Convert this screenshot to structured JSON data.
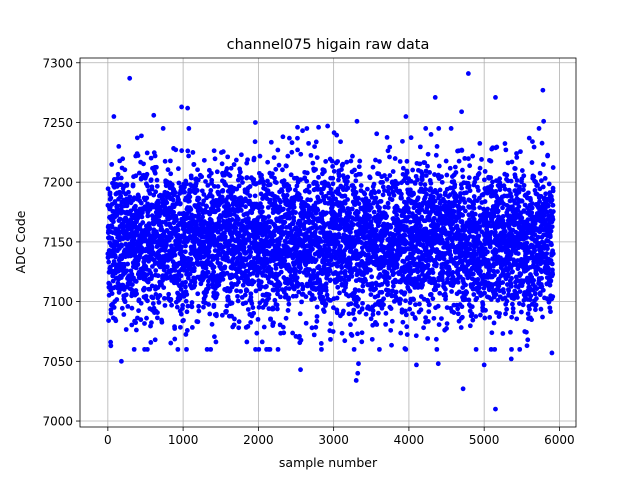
{
  "chart_data": {
    "type": "scatter",
    "title": "channel075 higain raw data",
    "xlabel": "sample number",
    "ylabel": "ADC Code",
    "xlim": [
      -370,
      6220
    ],
    "ylim": [
      6995,
      7304
    ],
    "xticks": [
      0,
      1000,
      2000,
      3000,
      4000,
      5000,
      6000
    ],
    "yticks": [
      7000,
      7050,
      7100,
      7150,
      7200,
      7250,
      7300
    ],
    "grid": true,
    "legend": "none",
    "marker_color": "#0000ff",
    "n_points": 5920,
    "center": 7150,
    "spread_sd": 32,
    "outliers": [
      {
        "x": 290,
        "y": 7287
      },
      {
        "x": 80,
        "y": 7255
      },
      {
        "x": 610,
        "y": 7256
      },
      {
        "x": 980,
        "y": 7263
      },
      {
        "x": 1060,
        "y": 7262
      },
      {
        "x": 1960,
        "y": 7250
      },
      {
        "x": 2520,
        "y": 7246
      },
      {
        "x": 2800,
        "y": 7246
      },
      {
        "x": 2920,
        "y": 7247
      },
      {
        "x": 3310,
        "y": 7251
      },
      {
        "x": 3960,
        "y": 7255
      },
      {
        "x": 4350,
        "y": 7271
      },
      {
        "x": 4700,
        "y": 7259
      },
      {
        "x": 4790,
        "y": 7291
      },
      {
        "x": 5150,
        "y": 7271
      },
      {
        "x": 5780,
        "y": 7277
      },
      {
        "x": 5790,
        "y": 7251
      },
      {
        "x": 5000,
        "y": 7047
      },
      {
        "x": 5150,
        "y": 7010
      },
      {
        "x": 4720,
        "y": 7027
      },
      {
        "x": 3300,
        "y": 7034
      },
      {
        "x": 3320,
        "y": 7040
      },
      {
        "x": 3330,
        "y": 7048
      },
      {
        "x": 4100,
        "y": 7047
      },
      {
        "x": 4390,
        "y": 7048
      },
      {
        "x": 2560,
        "y": 7043
      },
      {
        "x": 180,
        "y": 7050
      },
      {
        "x": 40,
        "y": 7063
      },
      {
        "x": 5360,
        "y": 7052
      },
      {
        "x": 5900,
        "y": 7057
      }
    ]
  }
}
